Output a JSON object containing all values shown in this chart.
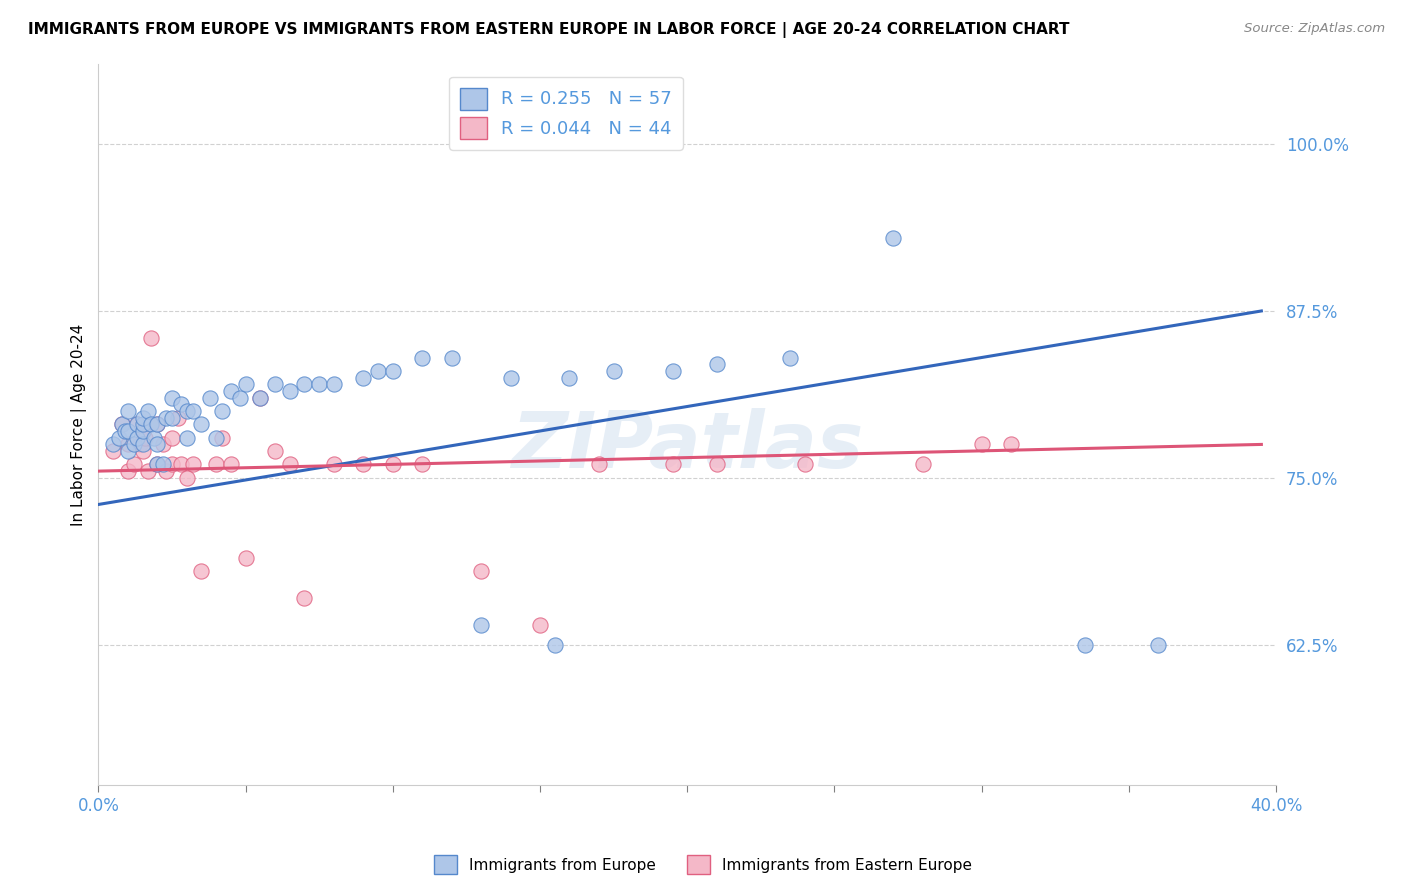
{
  "title": "IMMIGRANTS FROM EUROPE VS IMMIGRANTS FROM EASTERN EUROPE IN LABOR FORCE | AGE 20-24 CORRELATION CHART",
  "source": "Source: ZipAtlas.com",
  "ylabel": "In Labor Force | Age 20-24",
  "xlim": [
    0.0,
    0.4
  ],
  "ylim": [
    0.52,
    1.06
  ],
  "yticks": [
    0.625,
    0.75,
    0.875,
    1.0
  ],
  "ytick_labels": [
    "62.5%",
    "75.0%",
    "87.5%",
    "100.0%"
  ],
  "xticks": [
    0.0,
    0.05,
    0.1,
    0.15,
    0.2,
    0.25,
    0.3,
    0.35,
    0.4
  ],
  "xtick_labels": [
    "0.0%",
    "",
    "",
    "",
    "",
    "",
    "",
    "",
    "40.0%"
  ],
  "blue_R": 0.255,
  "blue_N": 57,
  "pink_R": 0.044,
  "pink_N": 44,
  "blue_color": "#aec6e8",
  "pink_color": "#f4b8c8",
  "blue_edge_color": "#5588cc",
  "pink_edge_color": "#e06080",
  "blue_line_color": "#3366bb",
  "pink_line_color": "#dd5577",
  "tick_label_color": "#5599dd",
  "watermark": "ZIPatlas",
  "blue_scatter_x": [
    0.005,
    0.007,
    0.008,
    0.009,
    0.01,
    0.01,
    0.01,
    0.012,
    0.013,
    0.013,
    0.015,
    0.015,
    0.015,
    0.015,
    0.017,
    0.018,
    0.019,
    0.02,
    0.02,
    0.02,
    0.022,
    0.023,
    0.025,
    0.025,
    0.028,
    0.03,
    0.03,
    0.032,
    0.035,
    0.038,
    0.04,
    0.042,
    0.045,
    0.048,
    0.05,
    0.055,
    0.06,
    0.065,
    0.07,
    0.075,
    0.08,
    0.09,
    0.095,
    0.1,
    0.11,
    0.12,
    0.13,
    0.14,
    0.155,
    0.16,
    0.175,
    0.195,
    0.21,
    0.235,
    0.27,
    0.335,
    0.36
  ],
  "blue_scatter_y": [
    0.775,
    0.78,
    0.79,
    0.785,
    0.77,
    0.785,
    0.8,
    0.775,
    0.78,
    0.79,
    0.775,
    0.785,
    0.79,
    0.795,
    0.8,
    0.79,
    0.78,
    0.76,
    0.775,
    0.79,
    0.76,
    0.795,
    0.795,
    0.81,
    0.805,
    0.78,
    0.8,
    0.8,
    0.79,
    0.81,
    0.78,
    0.8,
    0.815,
    0.81,
    0.82,
    0.81,
    0.82,
    0.815,
    0.82,
    0.82,
    0.82,
    0.825,
    0.83,
    0.83,
    0.84,
    0.84,
    0.64,
    0.825,
    0.625,
    0.825,
    0.83,
    0.83,
    0.835,
    0.84,
    0.93,
    0.625,
    0.625
  ],
  "pink_scatter_x": [
    0.005,
    0.008,
    0.01,
    0.01,
    0.012,
    0.013,
    0.014,
    0.015,
    0.015,
    0.016,
    0.017,
    0.018,
    0.02,
    0.02,
    0.022,
    0.023,
    0.025,
    0.025,
    0.027,
    0.028,
    0.03,
    0.032,
    0.035,
    0.04,
    0.042,
    0.045,
    0.05,
    0.055,
    0.06,
    0.065,
    0.07,
    0.08,
    0.09,
    0.1,
    0.11,
    0.13,
    0.15,
    0.17,
    0.195,
    0.21,
    0.24,
    0.28,
    0.3,
    0.31
  ],
  "pink_scatter_y": [
    0.77,
    0.79,
    0.755,
    0.775,
    0.76,
    0.79,
    0.775,
    0.77,
    0.785,
    0.78,
    0.755,
    0.855,
    0.76,
    0.79,
    0.775,
    0.755,
    0.76,
    0.78,
    0.795,
    0.76,
    0.75,
    0.76,
    0.68,
    0.76,
    0.78,
    0.76,
    0.69,
    0.81,
    0.77,
    0.76,
    0.66,
    0.76,
    0.76,
    0.76,
    0.76,
    0.68,
    0.64,
    0.76,
    0.76,
    0.76,
    0.76,
    0.76,
    0.775,
    0.775
  ],
  "blue_line_x0": 0.0,
  "blue_line_y0": 0.73,
  "blue_line_x1": 0.395,
  "blue_line_y1": 0.875,
  "pink_line_x0": 0.0,
  "pink_line_y0": 0.755,
  "pink_line_x1": 0.395,
  "pink_line_y1": 0.775
}
